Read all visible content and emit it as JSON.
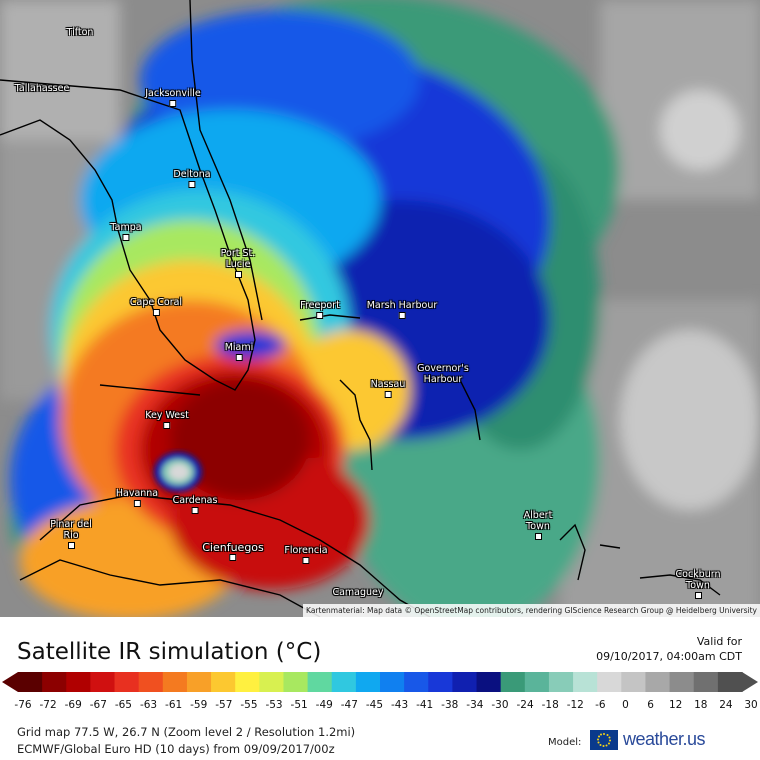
{
  "map": {
    "attribution": "Kartenmaterial: Map data © OpenStreetMap contributors, rendering GIScience Research Group @ Heidelberg University",
    "cities": [
      {
        "name": "Tifton"
      },
      {
        "name": "Tallahassee"
      },
      {
        "name": "Jacksonville"
      },
      {
        "name": "Deltona"
      },
      {
        "name": "Tampa"
      },
      {
        "name": "Port St. Lucie"
      },
      {
        "name": "Cape Coral"
      },
      {
        "name": "Freeport"
      },
      {
        "name": "Marsh Harbour"
      },
      {
        "name": "Miami"
      },
      {
        "name": "Nassau"
      },
      {
        "name": "Governor's Harbour"
      },
      {
        "name": "Key West"
      },
      {
        "name": "Havanna"
      },
      {
        "name": "Cardenas"
      },
      {
        "name": "Pinar del Rio"
      },
      {
        "name": "Cienfuegos"
      },
      {
        "name": "Florencia"
      },
      {
        "name": "Camaguey"
      },
      {
        "name": "Albert Town"
      },
      {
        "name": "Cockburn Town"
      }
    ]
  },
  "legend": {
    "title": "Satellite IR simulation (°C)",
    "valid_label": "Valid for",
    "valid_time": "09/10/2017, 04:00am CDT",
    "tick_labels": [
      "-76",
      "-72",
      "-69",
      "-67",
      "-65",
      "-63",
      "-61",
      "-59",
      "-57",
      "-55",
      "-53",
      "-51",
      "-49",
      "-47",
      "-45",
      "-43",
      "-41",
      "-38",
      "-34",
      "-30",
      "-24",
      "-18",
      "-12",
      "-6",
      "0",
      "6",
      "12",
      "18",
      "24",
      "30"
    ],
    "colors": [
      "#5a0000",
      "#8c0000",
      "#b00000",
      "#d01010",
      "#e83020",
      "#f05020",
      "#f47a20",
      "#f8a028",
      "#fcc830",
      "#fff040",
      "#d8f050",
      "#a8e860",
      "#60d8a0",
      "#30c8e0",
      "#10a8f0",
      "#1080f0",
      "#1858e8",
      "#1838d8",
      "#1020b0",
      "#0a1080",
      "#3a9a78",
      "#5ab49a",
      "#88ccb8",
      "#b8e2d6",
      "#d8d8d8",
      "#c4c4c4",
      "#a8a8a8",
      "#8c8c8c",
      "#707070",
      "#505050"
    ],
    "grid_info": "Grid map 77.5 W, 26.7 N (Zoom level 2 / Resolution 1.2mi)",
    "model_info": "ECMWF/Global Euro HD (10 days) from 09/09/2017/00z",
    "model_label": "Model:",
    "brand": "weather.us"
  }
}
